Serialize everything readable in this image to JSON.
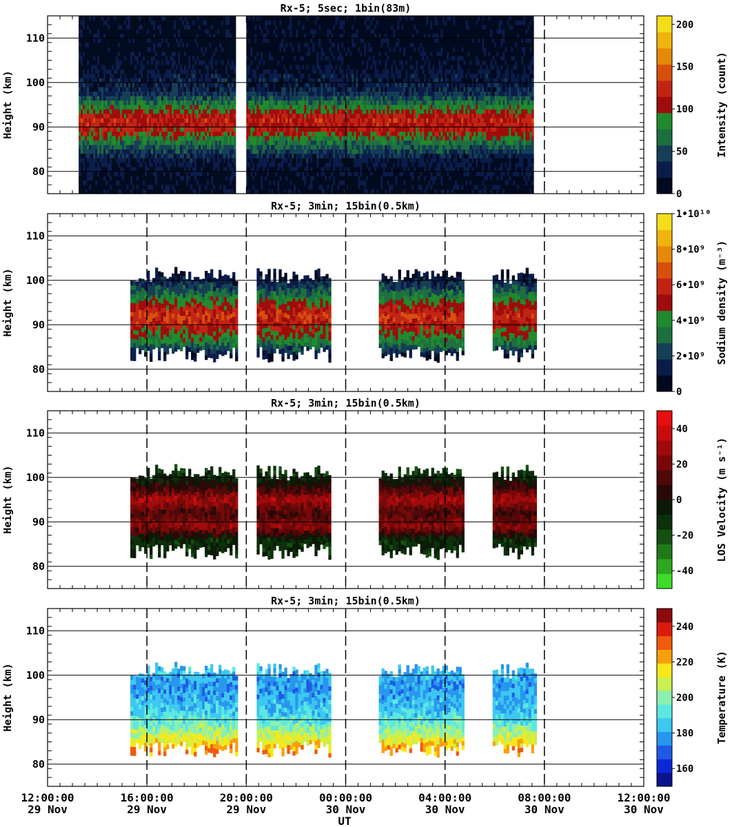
{
  "figure": {
    "x_axis_label": "UT",
    "x_ticks": [
      {
        "time": "12:00:00",
        "date": "29 Nov"
      },
      {
        "time": "16:00:00",
        "date": "29 Nov"
      },
      {
        "time": "20:00:00",
        "date": "29 Nov"
      },
      {
        "time": "00:00:00",
        "date": "30 Nov"
      },
      {
        "time": "04:00:00",
        "date": "30 Nov"
      },
      {
        "time": "08:00:00",
        "date": "30 Nov"
      },
      {
        "time": "12:00:00",
        "date": "30 Nov"
      }
    ],
    "y_axis_label": "Height (km)"
  },
  "panels": [
    {
      "title": "Rx-5;  5sec; 1bin(83m)",
      "colorbar_label": "Intensity (count)",
      "colorbar_ticks": [
        "0",
        "50",
        "100",
        "150",
        "200"
      ],
      "colorbar_colors": [
        "#000a1e",
        "#0a1c4a",
        "#153f55",
        "#1d6f3f",
        "#1f8b2c",
        "#9e0c0c",
        "#c22414",
        "#d6500c",
        "#e6890a",
        "#f0b40c",
        "#f6dd1a"
      ],
      "y_ticks": [
        "80",
        "90",
        "100",
        "110"
      ]
    },
    {
      "title": "Rx-5; 3min; 15bin(0.5km)",
      "colorbar_label": "Sodium density (m⁻³)",
      "colorbar_ticks": [
        "0",
        "2•10⁹",
        "4•10⁹",
        "6•10⁹",
        "8•10⁹",
        "1•10¹⁰"
      ],
      "colorbar_colors": [
        "#000a1e",
        "#0a1c4a",
        "#153f55",
        "#1d6f3f",
        "#1f8b2c",
        "#9e0c0c",
        "#c22414",
        "#d6500c",
        "#e6890a",
        "#f0b40c",
        "#f6dd1a"
      ],
      "y_ticks": [
        "80",
        "90",
        "100",
        "110"
      ]
    },
    {
      "title": "Rx-5; 3min; 15bin(0.5km)",
      "colorbar_label": "LOS Velocity (m s⁻¹)",
      "colorbar_ticks": [
        "-40",
        "-20",
        "0",
        "20",
        "40"
      ],
      "colorbar_colors": [
        "#3cdc28",
        "#2ea81e",
        "#207a16",
        "#145010",
        "#0c300a",
        "#0a1a06",
        "#2a0806",
        "#500808",
        "#780808",
        "#a00a0a",
        "#c80c0c",
        "#e60e0e"
      ],
      "y_ticks": [
        "80",
        "90",
        "100",
        "110"
      ]
    },
    {
      "title": "Rx-5; 3min; 15bin(0.5km)",
      "colorbar_label": "Temperature (K)",
      "colorbar_ticks": [
        "160",
        "180",
        "200",
        "220",
        "240"
      ],
      "colorbar_colors": [
        "#0a148c",
        "#0a28d8",
        "#1e5ae6",
        "#2896ee",
        "#3cc8f0",
        "#5ce8e0",
        "#8cf0b0",
        "#c8f050",
        "#f8e81a",
        "#f8a00c",
        "#f05a0c",
        "#dc1a0c",
        "#8c0a0a"
      ],
      "y_ticks": [
        "80",
        "90",
        "100",
        "110"
      ]
    }
  ],
  "chart_data": [
    {
      "type": "heatmap",
      "title": "Rx-5;  5sec; 1bin(83m)",
      "xlabel": "UT",
      "ylabel": "Height (km)",
      "x_range": [
        "29 Nov 12:00:00",
        "30 Nov 12:00:00"
      ],
      "ylim": [
        75,
        115
      ],
      "colorbar": {
        "label": "Intensity (count)",
        "range": [
          0,
          210
        ],
        "ticks": [
          0,
          50,
          100,
          150,
          200
        ]
      },
      "vertical_markers_ut": [
        "00:00:00",
        "08:00:00"
      ],
      "data_spans_ut": [
        [
          "13:15",
          "19:30"
        ],
        [
          "20:00",
          "07:30"
        ]
      ],
      "layers": [
        {
          "height_km": 77.5,
          "value": 10
        },
        {
          "height_km": 82.5,
          "value": 20
        },
        {
          "height_km": 86.0,
          "value": 60
        },
        {
          "height_km": 89.0,
          "value": 110
        },
        {
          "height_km": 92.0,
          "value": 120
        },
        {
          "height_km": 95.0,
          "value": 75
        },
        {
          "height_km": 98.0,
          "value": 30
        },
        {
          "height_km": 106.0,
          "value": 8
        }
      ]
    },
    {
      "type": "heatmap",
      "title": "Rx-5; 3min; 15bin(0.5km)",
      "xlabel": "UT",
      "ylabel": "Height (km)",
      "x_range": [
        "29 Nov 12:00:00",
        "30 Nov 12:00:00"
      ],
      "ylim": [
        75,
        115
      ],
      "colorbar": {
        "label": "Sodium density (m⁻³)",
        "range": [
          0,
          10000000000.0
        ],
        "ticks": [
          0,
          2000000000.0,
          4000000000.0,
          6000000000.0,
          8000000000.0,
          10000000000.0
        ]
      },
      "vertical_markers_ut": [
        "16:00:00",
        "20:00:00",
        "00:00:00",
        "04:00:00",
        "08:00:00"
      ],
      "data_spans_ut": [
        [
          "15:20",
          "19:35"
        ],
        [
          "20:25",
          "23:20"
        ],
        [
          "01:20",
          "04:45"
        ],
        [
          "05:55",
          "07:35"
        ]
      ],
      "layers": [
        {
          "height_km": 83.0,
          "value": 800000000.0
        },
        {
          "height_km": 86.0,
          "value": 3500000000.0
        },
        {
          "height_km": 89.0,
          "value": 5000000000.0
        },
        {
          "height_km": 92.0,
          "value": 6200000000.0
        },
        {
          "height_km": 95.0,
          "value": 4500000000.0
        },
        {
          "height_km": 98.0,
          "value": 2500000000.0
        },
        {
          "height_km": 101.0,
          "value": 700000000.0
        }
      ]
    },
    {
      "type": "heatmap",
      "title": "Rx-5; 3min; 15bin(0.5km)",
      "xlabel": "UT",
      "ylabel": "Height (km)",
      "x_range": [
        "29 Nov 12:00:00",
        "30 Nov 12:00:00"
      ],
      "ylim": [
        75,
        115
      ],
      "colorbar": {
        "label": "LOS Velocity (m s⁻¹)",
        "range": [
          -50,
          50
        ],
        "ticks": [
          -40,
          -20,
          0,
          20,
          40
        ]
      },
      "vertical_markers_ut": [
        "16:00:00",
        "20:00:00",
        "00:00:00",
        "04:00:00",
        "08:00:00"
      ],
      "data_spans_ut": [
        [
          "15:20",
          "19:35"
        ],
        [
          "20:25",
          "23:20"
        ],
        [
          "01:20",
          "04:45"
        ],
        [
          "05:55",
          "07:35"
        ]
      ],
      "layers": [
        {
          "height_km": 86.0,
          "value": -10
        },
        {
          "height_km": 89.0,
          "value": 25
        },
        {
          "height_km": 92.0,
          "value": 10
        },
        {
          "height_km": 95.0,
          "value": 30
        },
        {
          "height_km": 98.0,
          "value": 5
        },
        {
          "height_km": 101.0,
          "value": -15
        }
      ]
    },
    {
      "type": "heatmap",
      "title": "Rx-5; 3min; 15bin(0.5km)",
      "xlabel": "UT",
      "ylabel": "Height (km)",
      "x_range": [
        "29 Nov 12:00:00",
        "30 Nov 12:00:00"
      ],
      "ylim": [
        75,
        115
      ],
      "colorbar": {
        "label": "Temperature (K)",
        "range": [
          150,
          250
        ],
        "ticks": [
          160,
          180,
          200,
          220,
          240
        ]
      },
      "vertical_markers_ut": [
        "16:00:00",
        "20:00:00",
        "00:00:00",
        "04:00:00",
        "08:00:00"
      ],
      "data_spans_ut": [
        [
          "15:20",
          "19:35"
        ],
        [
          "20:25",
          "23:20"
        ],
        [
          "01:20",
          "04:45"
        ],
        [
          "05:55",
          "07:35"
        ]
      ],
      "layers": [
        {
          "height_km": 83.0,
          "value": 225
        },
        {
          "height_km": 86.0,
          "value": 210
        },
        {
          "height_km": 89.0,
          "value": 195
        },
        {
          "height_km": 92.0,
          "value": 185
        },
        {
          "height_km": 95.0,
          "value": 180
        },
        {
          "height_km": 98.0,
          "value": 178
        },
        {
          "height_km": 101.0,
          "value": 182
        }
      ]
    }
  ]
}
